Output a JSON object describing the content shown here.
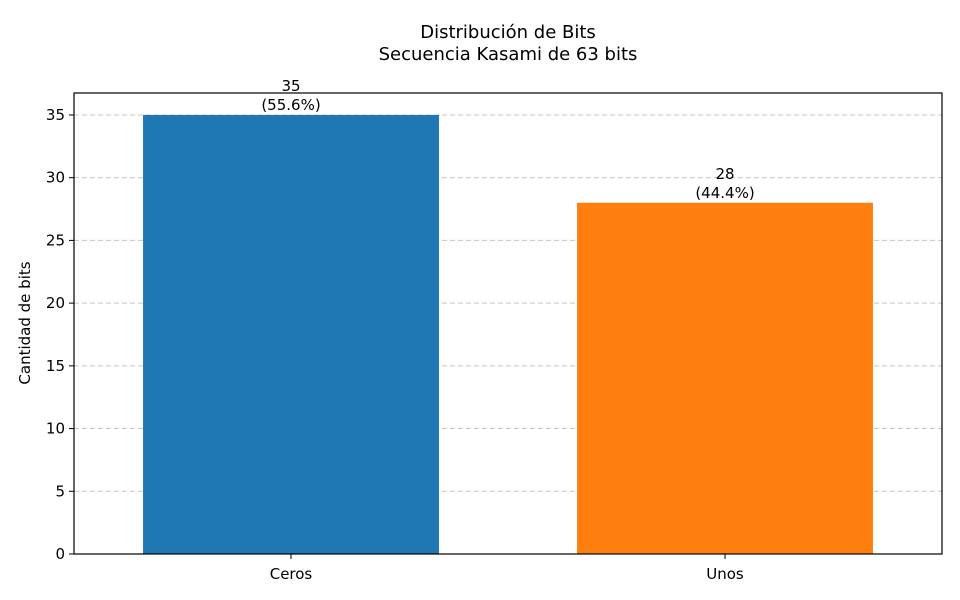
{
  "chart_data": {
    "type": "bar",
    "title": "Distribución de Bits",
    "subtitle": "Secuencia Kasami de 63 bits",
    "xlabel": "",
    "ylabel": "Cantidad de bits",
    "categories": [
      "Ceros",
      "Unos"
    ],
    "values": [
      35,
      28
    ],
    "value_labels": [
      "35",
      "28"
    ],
    "percent_labels": [
      "(55.6%)",
      "(44.4%)"
    ],
    "colors": [
      "#1f77b4",
      "#ff7f0e"
    ],
    "ylim": [
      0,
      36.75
    ],
    "yticks": [
      0,
      5,
      10,
      15,
      20,
      25,
      30,
      35
    ],
    "ytick_labels": [
      "0",
      "5",
      "10",
      "15",
      "20",
      "25",
      "30",
      "35"
    ],
    "grid": "y-dashed",
    "legend": "none"
  }
}
